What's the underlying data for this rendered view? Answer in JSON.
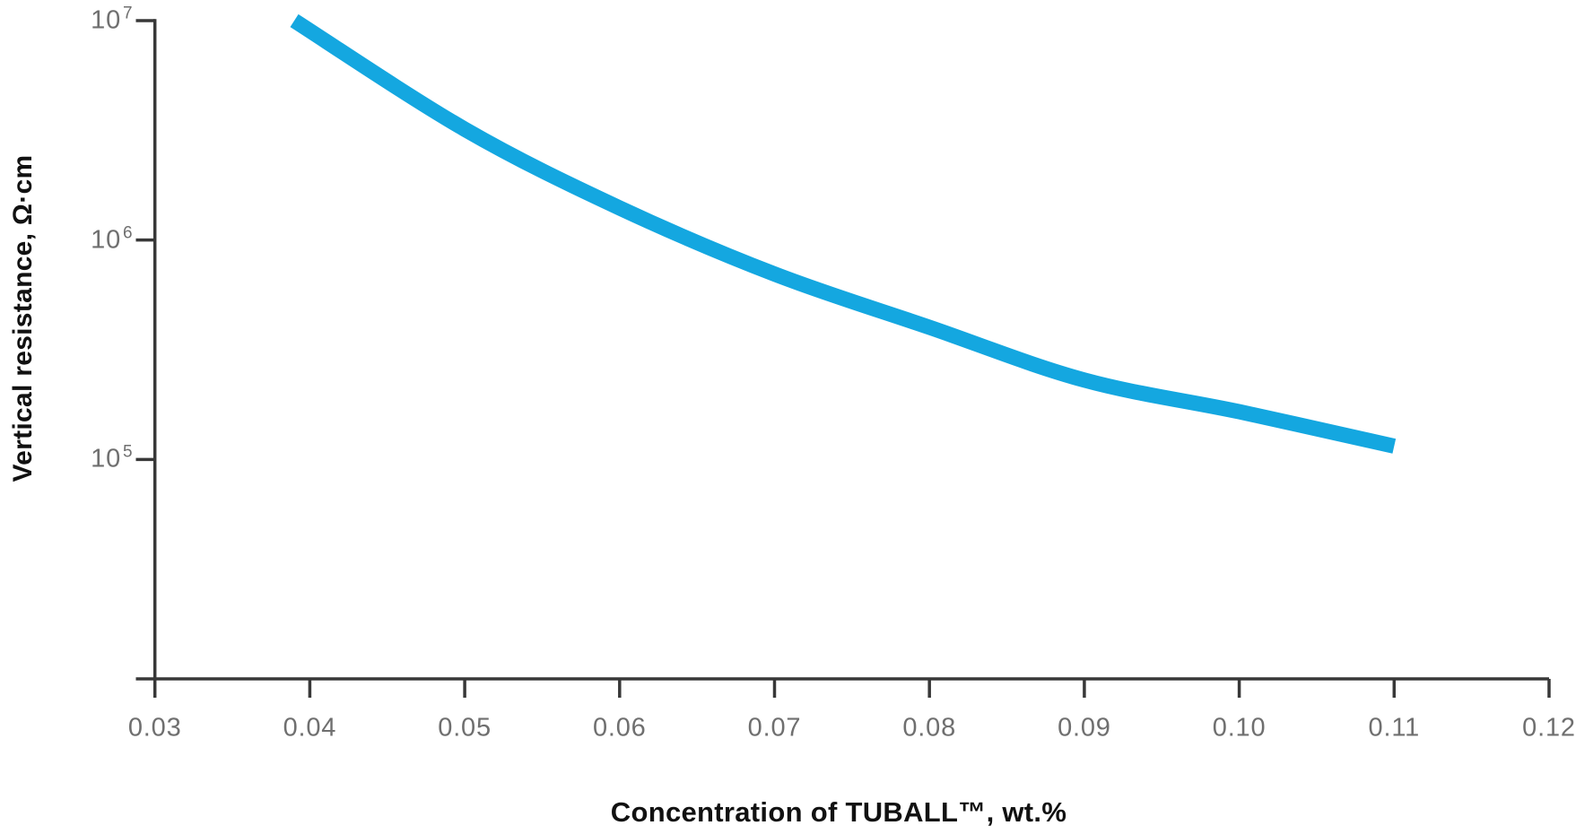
{
  "page": {
    "background": "#ffffff"
  },
  "chart_data": {
    "type": "line",
    "title": "",
    "xlabel": "Concentration of TUBALL™, wt.%",
    "ylabel": "Vertical resistance, Ω·cm",
    "x_axis": {
      "scale": "linear",
      "min": 0.03,
      "max": 0.12,
      "tick_labels": [
        "0.03",
        "0.04",
        "0.05",
        "0.06",
        "0.07",
        "0.08",
        "0.09",
        "0.10",
        "0.11",
        "0.12"
      ]
    },
    "y_axis": {
      "scale": "log",
      "min": 10000,
      "max": 10000000,
      "tick_base": "10",
      "tick_exponents": [
        "7",
        "6",
        "5"
      ]
    },
    "grid": false,
    "legend": false,
    "axis_color": "#383838",
    "tick_label_color": "#6f6f6f",
    "title_color": "#111111",
    "series": [
      {
        "name": "vertical-resistance-curve",
        "color": "#14A7E0",
        "line_width": 17,
        "x": [
          0.039,
          0.05,
          0.06,
          0.07,
          0.08,
          0.09,
          0.1,
          0.11
        ],
        "y": [
          10000000,
          3200000,
          1400000,
          700000,
          400000,
          230000,
          165000,
          115000
        ]
      }
    ]
  }
}
